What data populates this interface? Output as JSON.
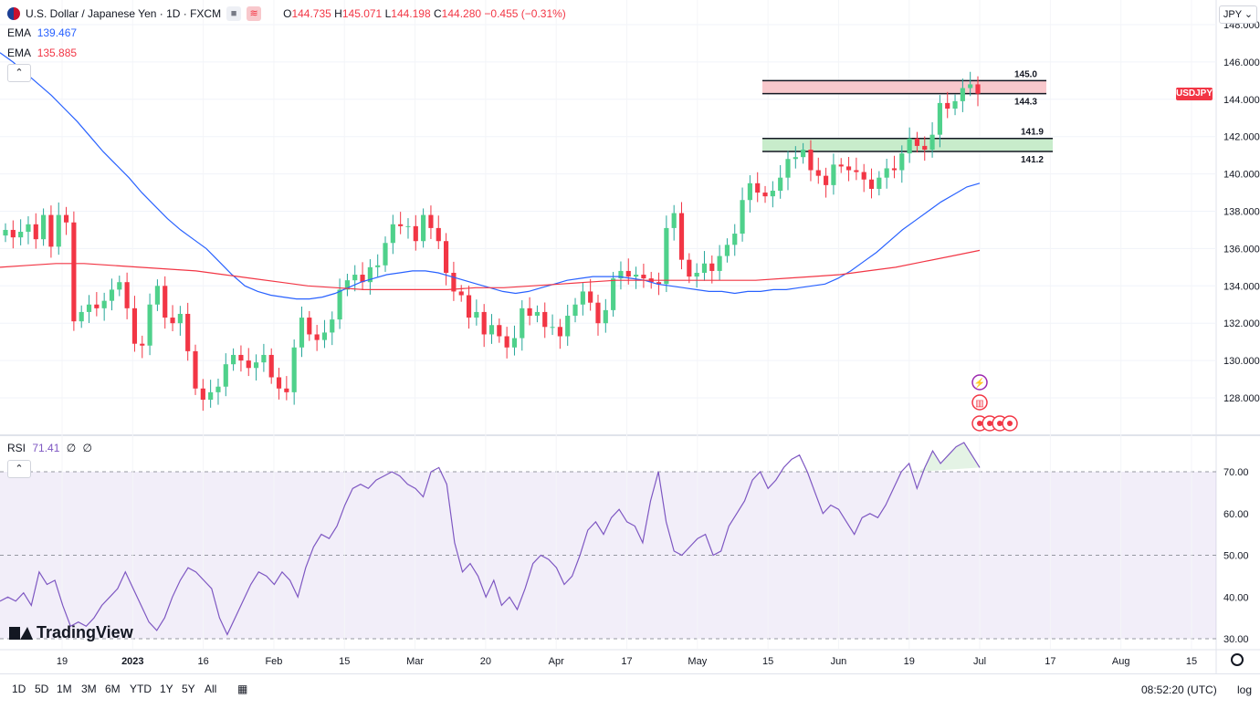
{
  "header": {
    "symbol_title": "U.S. Dollar / Japanese Yen · 1D · FXCM",
    "ohlc": {
      "o_label": "O",
      "o": "144.735",
      "h_label": "H",
      "h": "145.071",
      "l_label": "L",
      "l": "144.198",
      "c_label": "C",
      "c": "144.280",
      "change": "−0.455 (−0.31%)"
    }
  },
  "indicators": [
    {
      "name": "EMA",
      "value": "139.467",
      "color": "#2962ff"
    },
    {
      "name": "EMA",
      "value": "135.885",
      "color": "#f23645"
    }
  ],
  "rsi_legend": {
    "name": "RSI",
    "value": "71.41",
    "extra1": "∅",
    "extra2": "∅"
  },
  "currency_selector": "JPY",
  "symbol_tag": "USDJPY",
  "colors": {
    "up": "#26a69a",
    "up_body": "#4fd18b",
    "down": "#f23645",
    "ema_fast": "#2962ff",
    "ema_slow": "#f23645",
    "rsi": "#7e57c2"
  },
  "bottom_bar": {
    "ranges": [
      "1D",
      "5D",
      "1M",
      "3M",
      "6M",
      "YTD",
      "1Y",
      "5Y",
      "All"
    ],
    "clock": "08:52:20 (UTC)",
    "log_label": "log"
  },
  "branding": "TradingView",
  "chart_data": {
    "type": "candlestick",
    "price_axis": {
      "ticks": [
        128,
        130,
        132,
        134,
        136,
        138,
        140,
        142,
        144,
        146,
        148
      ],
      "labels": [
        "128.000",
        "130.000",
        "132.000",
        "134.000",
        "136.000",
        "138.000",
        "140.000",
        "142.000",
        "144.000",
        "146.000",
        "148.000"
      ]
    },
    "rsi_axis": {
      "ticks": [
        30,
        40,
        50,
        60,
        70
      ],
      "labels": [
        "30.00",
        "40.00",
        "50.00",
        "60.00",
        "70.00"
      ],
      "band": [
        30,
        70
      ]
    },
    "time_axis": [
      "19",
      "2023",
      "16",
      "Feb",
      "15",
      "Mar",
      "20",
      "Apr",
      "17",
      "May",
      "15",
      "Jun",
      "19",
      "Jul",
      "17",
      "Aug",
      "15"
    ],
    "zones": [
      {
        "kind": "resistance",
        "top": 145.0,
        "bottom": 144.3,
        "top_label": "145.0",
        "bottom_label": "144.3",
        "color": "#f8c8cc"
      },
      {
        "kind": "support",
        "top": 141.9,
        "bottom": 141.2,
        "top_label": "141.9",
        "bottom_label": "141.2",
        "color": "#c8eccb"
      }
    ],
    "candles_close": [
      137.0,
      136.6,
      136.9,
      137.3,
      136.5,
      137.8,
      136.1,
      137.8,
      137.4,
      132.1,
      132.6,
      133.0,
      132.8,
      133.2,
      133.8,
      134.2,
      132.8,
      130.9,
      130.8,
      133.0,
      134.0,
      132.3,
      132.0,
      132.5,
      130.5,
      128.5,
      127.9,
      128.3,
      128.6,
      129.8,
      130.3,
      130.0,
      129.6,
      129.9,
      130.3,
      129.1,
      128.5,
      128.3,
      130.7,
      132.3,
      131.4,
      131.1,
      131.5,
      132.2,
      133.8,
      134.3,
      134.6,
      134.2,
      135.0,
      135.1,
      136.3,
      137.3,
      137.2,
      137.2,
      136.4,
      137.8,
      137.1,
      136.4,
      134.7,
      133.7,
      133.5,
      132.3,
      132.6,
      131.4,
      131.9,
      131.3,
      130.7,
      131.2,
      132.8,
      132.4,
      132.6,
      131.8,
      131.8,
      131.3,
      132.4,
      133.0,
      133.7,
      133.1,
      132.0,
      132.7,
      134.4,
      134.8,
      134.5,
      134.6,
      134.4,
      134.2,
      134.1,
      137.1,
      137.9,
      135.4,
      134.5,
      134.7,
      135.2,
      134.8,
      135.6,
      136.2,
      136.8,
      138.6,
      139.5,
      139.0,
      138.8,
      139.1,
      139.8,
      140.8,
      140.9,
      141.3,
      140.2,
      139.9,
      139.4,
      140.5,
      140.4,
      140.2,
      140.1,
      139.7,
      139.2,
      139.8,
      140.3,
      140.2,
      141.1,
      141.9,
      141.5,
      141.3,
      142.1,
      143.8,
      143.5,
      143.9,
      144.6,
      144.8,
      144.3
    ],
    "ema_fast": [
      146.5,
      146.0,
      145.4,
      144.8,
      144.2,
      143.5,
      142.8,
      142.0,
      141.2,
      140.5,
      139.8,
      139.0,
      138.3,
      137.6,
      137.0,
      136.5,
      136.0,
      135.3,
      134.6,
      134.0,
      133.7,
      133.5,
      133.4,
      133.3,
      133.3,
      133.4,
      133.6,
      133.9,
      134.2,
      134.4,
      134.6,
      134.7,
      134.8,
      134.8,
      134.7,
      134.5,
      134.3,
      134.1,
      133.9,
      133.7,
      133.6,
      133.7,
      133.9,
      134.1,
      134.3,
      134.4,
      134.5,
      134.5,
      134.5,
      134.4,
      134.3,
      134.1,
      134.0,
      133.9,
      133.8,
      133.7,
      133.7,
      133.6,
      133.7,
      133.7,
      133.8,
      133.8,
      133.9,
      134.0,
      134.1,
      134.4,
      134.8,
      135.3,
      135.8,
      136.4,
      137.0,
      137.5,
      138.0,
      138.5,
      138.9,
      139.3,
      139.5
    ],
    "ema_slow": [
      135.0,
      135.1,
      135.2,
      135.2,
      135.1,
      135.0,
      134.9,
      134.8,
      134.6,
      134.4,
      134.2,
      134.0,
      133.9,
      133.8,
      133.8,
      133.8,
      133.8,
      133.9,
      133.9,
      134.0,
      134.1,
      134.2,
      134.3,
      134.3,
      134.3,
      134.3,
      134.3,
      134.3,
      134.4,
      134.5,
      134.6,
      134.8,
      135.0,
      135.3,
      135.6,
      135.9
    ],
    "rsi_values": [
      39,
      40,
      39,
      41,
      38,
      46,
      43,
      44,
      38,
      33,
      34,
      33,
      35,
      38,
      40,
      42,
      46,
      42,
      38,
      34,
      32,
      35,
      40,
      44,
      47,
      46,
      44,
      42,
      35,
      31,
      35,
      39,
      43,
      46,
      45,
      43,
      46,
      44,
      40,
      47,
      52,
      55,
      54,
      57,
      62,
      66,
      67,
      66,
      68,
      69,
      70,
      69,
      67,
      66,
      64,
      70,
      71,
      67,
      53,
      46,
      48,
      45,
      40,
      44,
      38,
      40,
      37,
      42,
      48,
      50,
      49,
      47,
      43,
      45,
      50,
      56,
      58,
      55,
      59,
      61,
      58,
      57,
      53,
      63,
      70,
      58,
      51,
      50,
      52,
      54,
      55,
      50,
      51,
      57,
      60,
      63,
      68,
      70,
      66,
      68,
      71,
      73,
      74,
      70,
      65,
      60,
      62,
      61,
      58,
      55,
      59,
      60,
      59,
      62,
      66,
      70,
      72,
      66,
      71,
      75,
      72,
      74,
      76,
      77,
      74,
      71
    ]
  }
}
